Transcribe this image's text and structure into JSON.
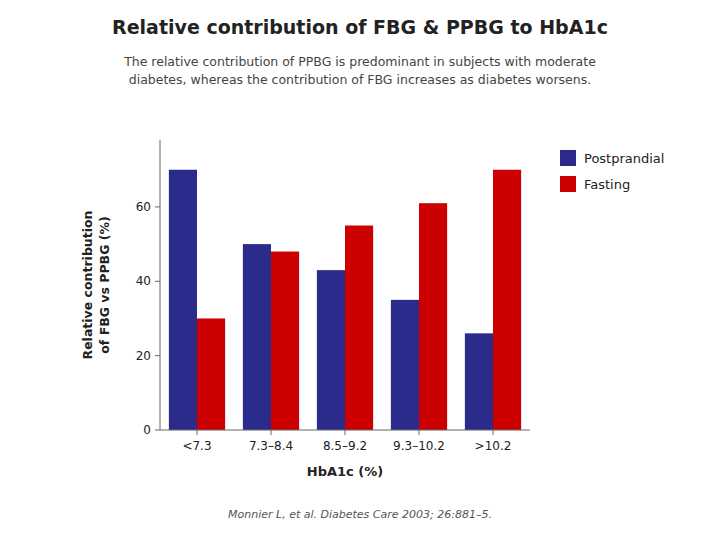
{
  "chart_data": {
    "type": "bar",
    "title": "Relative contribution of FBG & PPBG to HbA1c",
    "subtitle": "The relative contribution of PPBG is predominant in subjects with moderate\ndiabetes, whereas the contribution of FBG increases as diabetes worsens.",
    "x_label": "HbA1c (%)",
    "y_label": "Relative contribution\nof FBG vs PPBG (%)",
    "categories": [
      "<7.3",
      "7.3–8.4",
      "8.5–9.2",
      "9.3–10.2",
      ">10.2"
    ],
    "series": [
      {
        "name": "Postprandial",
        "color": "#2B2B8C",
        "values": [
          70,
          50,
          43,
          35,
          26
        ]
      },
      {
        "name": "Fasting",
        "color": "#CC0000",
        "values": [
          30,
          48,
          55,
          61,
          70
        ]
      }
    ],
    "ylim": [
      0,
      78
    ],
    "yticks": [
      0,
      20,
      40,
      60
    ],
    "grid": false,
    "legend": "right",
    "annotations": [
      "Monnier L, et al. Diabetes Care 2003; 26:881–5."
    ]
  }
}
